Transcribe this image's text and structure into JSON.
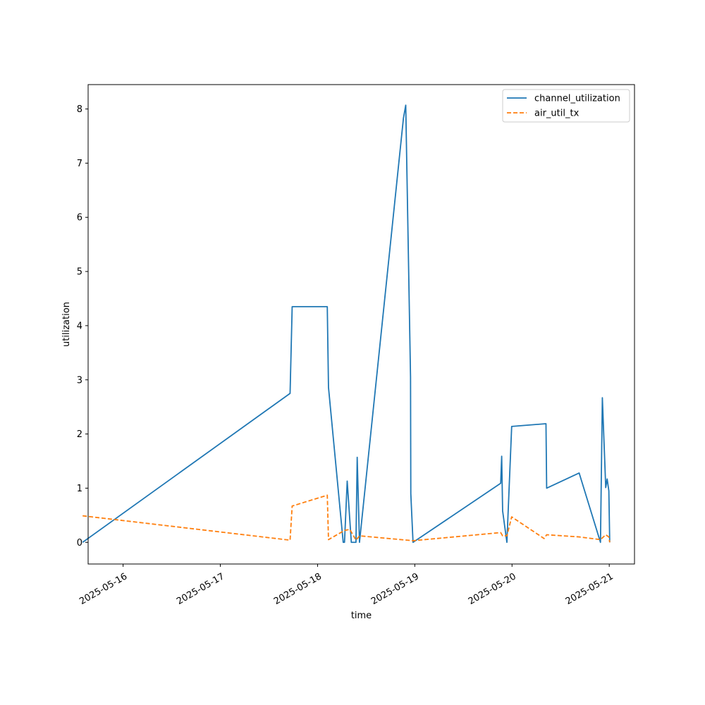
{
  "chart_data": {
    "type": "line",
    "xlabel": "time",
    "ylabel": "utilization",
    "x_type": "datetime",
    "xlim": [
      "2025-05-15T15:22",
      "2025-05-21T06:14"
    ],
    "ylim": [
      -0.4,
      8.45
    ],
    "x_ticks": [
      "2025-05-16",
      "2025-05-17",
      "2025-05-18",
      "2025-05-19",
      "2025-05-20",
      "2025-05-21"
    ],
    "y_ticks": [
      0,
      1,
      2,
      3,
      4,
      5,
      6,
      7,
      8
    ],
    "grid": false,
    "legend_position": "upper right",
    "series": [
      {
        "name": "channel_utilization",
        "color": "#1f77b4",
        "style": "solid",
        "points": [
          [
            "2025-05-15T14:00",
            0.0
          ],
          [
            "2025-05-17T17:13",
            2.75
          ],
          [
            "2025-05-17T17:44",
            4.35
          ],
          [
            "2025-05-18T02:24",
            4.35
          ],
          [
            "2025-05-18T02:42",
            2.86
          ],
          [
            "2025-05-18T06:20",
            0.0
          ],
          [
            "2025-05-18T06:39",
            0.0
          ],
          [
            "2025-05-18T07:19",
            1.13
          ],
          [
            "2025-05-18T08:20",
            0.0
          ],
          [
            "2025-05-18T09:29",
            0.0
          ],
          [
            "2025-05-18T09:47",
            1.57
          ],
          [
            "2025-05-18T10:21",
            0.0
          ],
          [
            "2025-05-18T21:12",
            7.83
          ],
          [
            "2025-05-18T21:46",
            8.07
          ],
          [
            "2025-05-18T22:57",
            3.05
          ],
          [
            "2025-05-18T23:01",
            0.9
          ],
          [
            "2025-05-18T23:34",
            0.0
          ],
          [
            "2025-05-19T21:12",
            1.09
          ],
          [
            "2025-05-19T21:27",
            1.59
          ],
          [
            "2025-05-19T21:41",
            0.58
          ],
          [
            "2025-05-19T22:44",
            0.0
          ],
          [
            "2025-05-19T23:55",
            2.14
          ],
          [
            "2025-05-20T08:23",
            2.19
          ],
          [
            "2025-05-20T08:33",
            1.0
          ],
          [
            "2025-05-20T16:34",
            1.28
          ],
          [
            "2025-05-20T21:50",
            0.0
          ],
          [
            "2025-05-20T22:18",
            2.67
          ],
          [
            "2025-05-20T23:08",
            1.01
          ],
          [
            "2025-05-20T23:29",
            1.17
          ],
          [
            "2025-05-20T23:54",
            0.95
          ],
          [
            "2025-05-21T00:07",
            0.0
          ]
        ]
      },
      {
        "name": "air_util_tx",
        "color": "#ff7f0e",
        "style": "dashed",
        "points": [
          [
            "2025-05-15T14:00",
            0.49
          ],
          [
            "2025-05-17T17:13",
            0.04
          ],
          [
            "2025-05-17T17:44",
            0.67
          ],
          [
            "2025-05-18T02:24",
            0.87
          ],
          [
            "2025-05-18T02:42",
            0.05
          ],
          [
            "2025-05-18T06:39",
            0.22
          ],
          [
            "2025-05-18T07:58",
            0.24
          ],
          [
            "2025-05-18T09:29",
            0.04
          ],
          [
            "2025-05-18T10:21",
            0.12
          ],
          [
            "2025-05-18T23:34",
            0.03
          ],
          [
            "2025-05-19T21:12",
            0.18
          ],
          [
            "2025-05-19T21:41",
            0.12
          ],
          [
            "2025-05-19T22:44",
            0.12
          ],
          [
            "2025-05-19T23:55",
            0.47
          ],
          [
            "2025-05-20T07:55",
            0.07
          ],
          [
            "2025-05-20T08:33",
            0.14
          ],
          [
            "2025-05-20T16:34",
            0.1
          ],
          [
            "2025-05-20T21:50",
            0.05
          ],
          [
            "2025-05-20T23:08",
            0.14
          ],
          [
            "2025-05-20T23:54",
            0.1
          ],
          [
            "2025-05-21T00:07",
            0.0
          ]
        ]
      }
    ]
  }
}
